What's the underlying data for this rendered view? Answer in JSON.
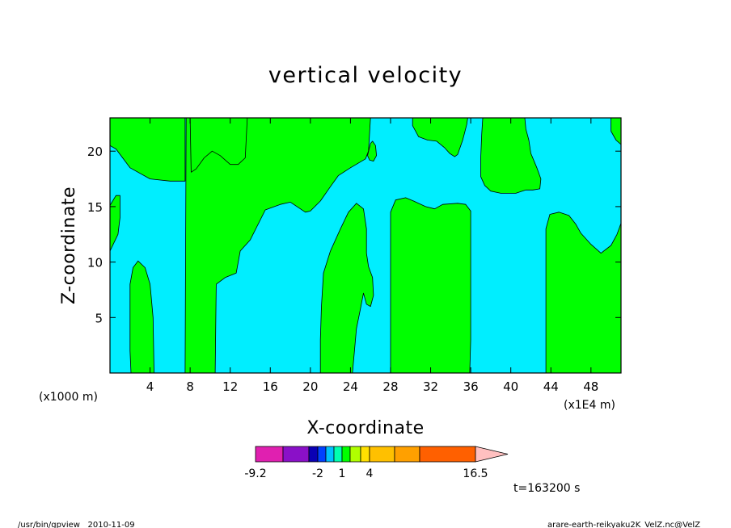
{
  "chart_data": {
    "type": "heatmap",
    "title": "vertical velocity",
    "xlabel": "X-coordinate",
    "ylabel": "Z-coordinate",
    "x_unit_left": "(x1000 m)",
    "x_unit_right": "(x1E4 m)",
    "xlim": [
      0,
      51
    ],
    "ylim": [
      0,
      23
    ],
    "x_ticks": [
      4,
      8,
      12,
      16,
      20,
      24,
      28,
      32,
      36,
      40,
      44,
      48
    ],
    "y_ticks": [
      5,
      10,
      15,
      20
    ],
    "field_colors": {
      "positive": "#00ff00",
      "negative": "#00eeff"
    },
    "regions": [
      {
        "sign": "positive",
        "polygon": [
          [
            0,
            23
          ],
          [
            7.5,
            23
          ],
          [
            7.5,
            17.3
          ],
          [
            6,
            17.3
          ],
          [
            4,
            17.5
          ],
          [
            2,
            18.5
          ],
          [
            0.6,
            20.2
          ],
          [
            0,
            20.5
          ]
        ]
      },
      {
        "sign": "positive",
        "polygon": [
          [
            7.5,
            0
          ],
          [
            10.5,
            0
          ],
          [
            10.6,
            8
          ],
          [
            11.5,
            8.6
          ],
          [
            12.6,
            9
          ],
          [
            13,
            11
          ],
          [
            14,
            12
          ],
          [
            15.5,
            14.7
          ],
          [
            17,
            15.2
          ],
          [
            18,
            15.4
          ],
          [
            19.5,
            14.5
          ],
          [
            20,
            14.6
          ],
          [
            21,
            15.5
          ],
          [
            22,
            16.8
          ],
          [
            22.8,
            17.8
          ],
          [
            24,
            18.5
          ],
          [
            25.5,
            19.3
          ],
          [
            25.8,
            20
          ],
          [
            26,
            23
          ],
          [
            7.6,
            23
          ]
        ]
      },
      {
        "sign": "positive",
        "polygon": [
          [
            8.1,
            18.1
          ],
          [
            8.6,
            18.4
          ],
          [
            9.4,
            19.4
          ],
          [
            10.2,
            20
          ],
          [
            11,
            19.6
          ],
          [
            12,
            18.8
          ],
          [
            12.8,
            18.8
          ],
          [
            13.5,
            19.4
          ],
          [
            13.7,
            23
          ],
          [
            8,
            23
          ]
        ]
      },
      {
        "sign": "positive",
        "polygon": [
          [
            0,
            11
          ],
          [
            0.8,
            12.5
          ],
          [
            1,
            14
          ],
          [
            1,
            16
          ],
          [
            0.6,
            16
          ],
          [
            0,
            15.1
          ]
        ]
      },
      {
        "sign": "positive",
        "polygon": [
          [
            2.1,
            0
          ],
          [
            4.4,
            0
          ],
          [
            4.3,
            5
          ],
          [
            4,
            8
          ],
          [
            3.5,
            9.5
          ],
          [
            2.8,
            10.1
          ],
          [
            2.3,
            9.5
          ],
          [
            2,
            8
          ],
          [
            2,
            2
          ]
        ]
      },
      {
        "sign": "positive",
        "polygon": [
          [
            21,
            0
          ],
          [
            24.2,
            0
          ],
          [
            24.6,
            4
          ],
          [
            25,
            5.8
          ],
          [
            25.3,
            7.2
          ],
          [
            25.6,
            6.2
          ],
          [
            26,
            6
          ],
          [
            26.3,
            7
          ],
          [
            26.2,
            8.6
          ],
          [
            25.8,
            9.6
          ],
          [
            25.6,
            10.8
          ],
          [
            25.6,
            13
          ],
          [
            25.3,
            14.8
          ],
          [
            24.6,
            15.3
          ],
          [
            23.8,
            14.5
          ],
          [
            23,
            13
          ],
          [
            22,
            11
          ],
          [
            21.3,
            9
          ],
          [
            21.1,
            6
          ],
          [
            21,
            3
          ]
        ]
      },
      {
        "sign": "positive",
        "polygon": [
          [
            25.7,
            19.6
          ],
          [
            26,
            20.7
          ],
          [
            26.2,
            20.9
          ],
          [
            26.5,
            20.5
          ],
          [
            26.6,
            19.6
          ],
          [
            26.3,
            19.1
          ],
          [
            25.9,
            19.2
          ]
        ]
      },
      {
        "sign": "positive",
        "polygon": [
          [
            28,
            0
          ],
          [
            35.9,
            0
          ],
          [
            36,
            3
          ],
          [
            36,
            14.6
          ],
          [
            35.5,
            15.2
          ],
          [
            34.7,
            15.3
          ],
          [
            33.2,
            15.2
          ],
          [
            32.4,
            14.8
          ],
          [
            31.5,
            15
          ],
          [
            30.3,
            15.5
          ],
          [
            29.5,
            15.8
          ],
          [
            28.5,
            15.6
          ],
          [
            28,
            14.5
          ],
          [
            28,
            2
          ]
        ]
      },
      {
        "sign": "positive",
        "polygon": [
          [
            30.2,
            23
          ],
          [
            30.2,
            22.3
          ],
          [
            30.8,
            21.3
          ],
          [
            31.7,
            21
          ],
          [
            32.6,
            20.9
          ],
          [
            33.4,
            20.3
          ],
          [
            33.9,
            19.8
          ],
          [
            34.4,
            19.5
          ],
          [
            34.7,
            19.7
          ],
          [
            35.2,
            21
          ],
          [
            35.6,
            22.4
          ],
          [
            35.7,
            23
          ]
        ]
      },
      {
        "sign": "positive",
        "polygon": [
          [
            37.2,
            23
          ],
          [
            37.1,
            21.5
          ],
          [
            37,
            19.4
          ],
          [
            37,
            17.7
          ],
          [
            37.4,
            16.9
          ],
          [
            38,
            16.4
          ],
          [
            39,
            16.2
          ],
          [
            40.5,
            16.2
          ],
          [
            41.5,
            16.5
          ],
          [
            42.2,
            16.5
          ],
          [
            42.9,
            16.6
          ],
          [
            43,
            17.5
          ],
          [
            42.6,
            18.5
          ],
          [
            42,
            19.8
          ],
          [
            41.8,
            21
          ],
          [
            41.5,
            22
          ],
          [
            41.4,
            23
          ]
        ]
      },
      {
        "sign": "positive",
        "polygon": [
          [
            43.5,
            0
          ],
          [
            51,
            0
          ],
          [
            51,
            13.5
          ],
          [
            50.6,
            12.5
          ],
          [
            50,
            11.5
          ],
          [
            49,
            10.8
          ],
          [
            48,
            11.6
          ],
          [
            47,
            12.6
          ],
          [
            46.5,
            13.4
          ],
          [
            45.8,
            14.2
          ],
          [
            44.8,
            14.5
          ],
          [
            43.9,
            14.3
          ],
          [
            43.5,
            13
          ],
          [
            43.5,
            2
          ]
        ]
      },
      {
        "sign": "positive",
        "polygon": [
          [
            50,
            23
          ],
          [
            50,
            21.8
          ],
          [
            50.5,
            21
          ],
          [
            51,
            20.6
          ],
          [
            51,
            23
          ]
        ]
      }
    ],
    "colorbar": {
      "colors": [
        "#e020b0",
        "#8a10c8",
        "#0a00b4",
        "#0040ff",
        "#00c0ff",
        "#00ffb0",
        "#00ff00",
        "#b0ff00",
        "#ffe000",
        "#ffc000",
        "#ffa000",
        "#ff6000",
        "#ff1010",
        "#ff8080",
        "#ffc0c0"
      ],
      "tick_labels": [
        "-9.2",
        "-2",
        "1",
        "4",
        "16.5"
      ]
    },
    "time_label": "t=163200 s"
  },
  "footer": {
    "left": "/usr/bin/gpview   2010-11-09",
    "right": "arare-earth-reikyaku2K_VelZ.nc@VelZ"
  }
}
